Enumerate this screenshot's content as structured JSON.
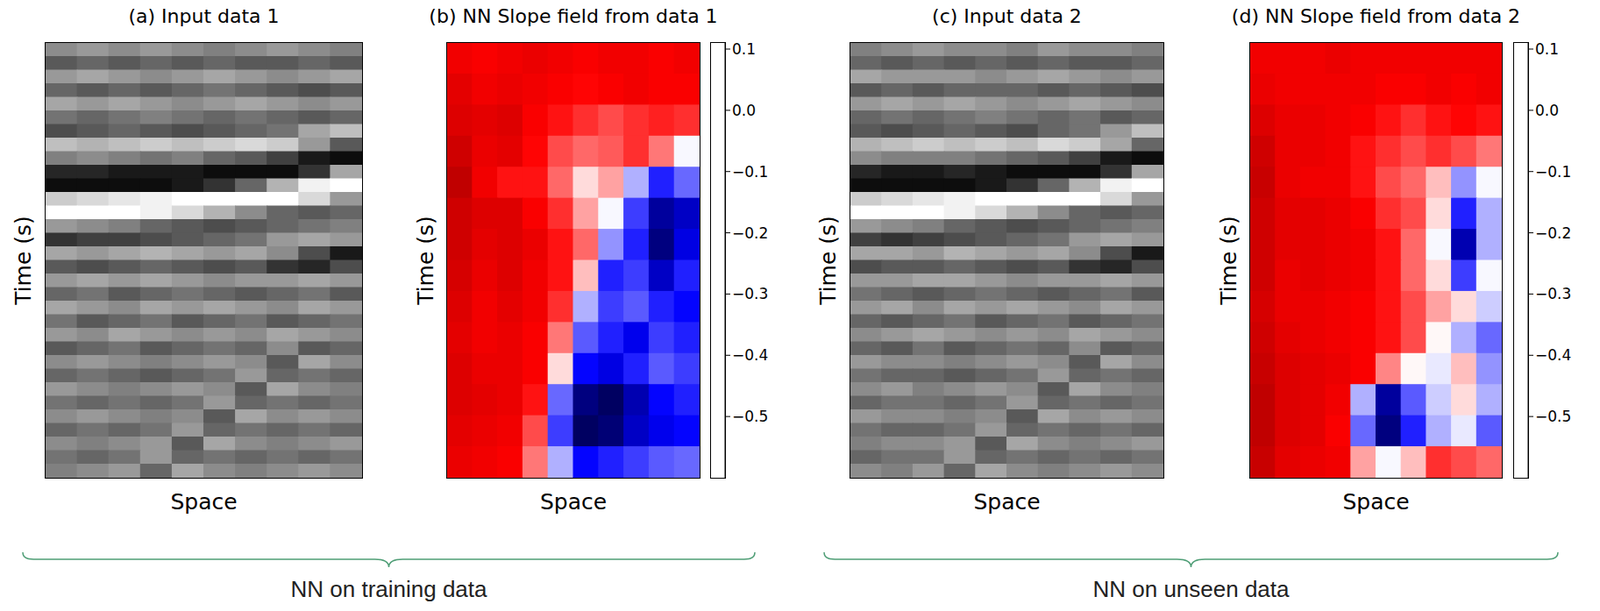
{
  "chart_data": [
    {
      "type": "image",
      "title": "(a) Input data 1",
      "x_label": "Space",
      "y_label": "Time (s)",
      "tick_labels": false,
      "value_range": [
        -1,
        1
      ],
      "cells": [
        [
          0.1,
          0.2,
          0.1,
          0.2,
          0.1,
          0.0,
          0.1,
          0.2,
          0.1,
          0.0
        ],
        [
          -0.3,
          -0.2,
          -0.3,
          -0.2,
          -0.3,
          -0.2,
          -0.3,
          -0.3,
          -0.2,
          -0.3
        ],
        [
          0.2,
          0.3,
          0.2,
          0.1,
          0.2,
          0.3,
          0.2,
          0.1,
          0.2,
          0.3
        ],
        [
          -0.2,
          -0.3,
          -0.2,
          -0.3,
          -0.2,
          -0.1,
          -0.2,
          -0.3,
          -0.4,
          -0.3
        ],
        [
          0.3,
          0.2,
          0.3,
          0.2,
          0.1,
          0.2,
          0.3,
          0.2,
          0.1,
          0.2
        ],
        [
          -0.1,
          -0.2,
          -0.1,
          0.0,
          -0.1,
          -0.2,
          -0.1,
          -0.2,
          -0.3,
          -0.2
        ],
        [
          -0.4,
          -0.3,
          -0.2,
          -0.3,
          -0.4,
          -0.3,
          -0.2,
          -0.1,
          0.3,
          0.5
        ],
        [
          0.5,
          0.4,
          0.5,
          0.6,
          0.5,
          0.6,
          0.7,
          0.6,
          0.2,
          -0.3
        ],
        [
          0.0,
          0.1,
          0.0,
          -0.1,
          0.0,
          -0.2,
          -0.3,
          -0.5,
          -0.8,
          -0.9
        ],
        [
          -0.7,
          -0.7,
          -0.8,
          -0.8,
          -0.8,
          -0.9,
          -0.9,
          -0.9,
          -0.6,
          0.3
        ],
        [
          -0.9,
          -0.9,
          -0.9,
          -0.9,
          -0.8,
          -0.6,
          -0.2,
          0.4,
          0.9,
          1.0
        ],
        [
          0.6,
          0.7,
          0.8,
          0.9,
          1.0,
          1.0,
          1.0,
          1.0,
          0.7,
          0.2
        ],
        [
          1.0,
          1.0,
          1.0,
          0.9,
          0.7,
          0.4,
          0.1,
          -0.2,
          -0.3,
          -0.2
        ],
        [
          0.2,
          0.1,
          0.0,
          -0.2,
          -0.3,
          -0.4,
          -0.3,
          -0.2,
          -0.1,
          0.0
        ],
        [
          -0.6,
          -0.5,
          -0.5,
          -0.4,
          -0.3,
          -0.2,
          -0.1,
          0.2,
          0.3,
          0.2
        ],
        [
          0.3,
          0.2,
          0.3,
          0.4,
          0.3,
          0.2,
          0.3,
          0.1,
          -0.4,
          -0.8
        ],
        [
          -0.3,
          -0.4,
          -0.3,
          -0.2,
          -0.3,
          -0.4,
          -0.3,
          -0.6,
          -0.7,
          -0.4
        ],
        [
          0.2,
          0.3,
          0.2,
          0.3,
          0.2,
          0.1,
          0.2,
          0.2,
          0.3,
          0.2
        ],
        [
          -0.2,
          -0.1,
          -0.3,
          -0.2,
          -0.1,
          -0.2,
          -0.3,
          -0.2,
          -0.1,
          -0.3
        ],
        [
          0.3,
          0.2,
          0.1,
          0.3,
          0.2,
          0.3,
          0.2,
          0.1,
          0.3,
          0.2
        ],
        [
          -0.1,
          -0.3,
          -0.2,
          -0.1,
          -0.3,
          -0.2,
          -0.1,
          -0.3,
          -0.2,
          -0.1
        ],
        [
          0.2,
          0.1,
          0.3,
          0.2,
          0.1,
          0.2,
          0.1,
          0.3,
          0.2,
          0.1
        ],
        [
          -0.3,
          -0.2,
          -0.1,
          -0.3,
          -0.2,
          -0.1,
          -0.2,
          0.1,
          -0.3,
          -0.2
        ],
        [
          0.1,
          0.2,
          0.1,
          0.0,
          0.1,
          0.2,
          0.1,
          -0.3,
          0.3,
          0.1
        ],
        [
          -0.2,
          -0.1,
          -0.2,
          -0.3,
          -0.2,
          -0.1,
          0.2,
          -0.2,
          -0.1,
          -0.2
        ],
        [
          0.2,
          0.1,
          0.0,
          0.1,
          0.2,
          0.1,
          -0.3,
          0.3,
          0.1,
          0.0
        ],
        [
          -0.1,
          -0.2,
          -0.1,
          -0.2,
          -0.1,
          0.2,
          -0.2,
          -0.1,
          -0.2,
          -0.1
        ],
        [
          0.1,
          0.2,
          0.1,
          0.0,
          0.1,
          -0.3,
          0.3,
          0.1,
          0.2,
          0.1
        ],
        [
          -0.2,
          -0.1,
          -0.2,
          -0.1,
          0.2,
          -0.2,
          -0.1,
          -0.2,
          -0.1,
          -0.2
        ],
        [
          0.1,
          0.0,
          0.1,
          0.2,
          -0.3,
          0.3,
          0.1,
          0.0,
          0.1,
          0.2
        ],
        [
          -0.1,
          -0.2,
          -0.1,
          0.2,
          -0.2,
          -0.1,
          -0.2,
          -0.1,
          -0.2,
          -0.1
        ],
        [
          0.0,
          0.1,
          0.2,
          -0.2,
          0.3,
          0.1,
          0.0,
          0.1,
          0.2,
          0.1
        ]
      ]
    },
    {
      "type": "heatmap",
      "title": "(b) NN Slope field from data 1",
      "x_label": "Space",
      "y_label": "Time (s)",
      "tick_labels": false,
      "colorbar": {
        "lim": [
          -0.6,
          0.11
        ],
        "ticks": [
          0.1,
          {
            "value": 0,
            "label": "0.0"
          },
          {
            "value": -0.1,
            "label": "−0.1"
          },
          {
            "value": -0.2,
            "label": "−0.2"
          },
          {
            "value": -0.3,
            "label": "−0.3"
          },
          {
            "value": -0.4,
            "label": "−0.4"
          },
          {
            "value": -0.5,
            "label": "−0.5"
          }
        ]
      },
      "cells": [
        [
          -0.05,
          -0.06,
          -0.05,
          -0.04,
          -0.05,
          -0.06,
          -0.05,
          -0.05,
          -0.06,
          -0.05
        ],
        [
          -0.03,
          -0.05,
          -0.04,
          -0.05,
          -0.06,
          -0.07,
          -0.06,
          -0.05,
          -0.06,
          -0.06
        ],
        [
          -0.02,
          -0.03,
          -0.02,
          -0.06,
          -0.08,
          -0.1,
          -0.12,
          -0.1,
          -0.09,
          -0.1
        ],
        [
          0.0,
          -0.04,
          -0.03,
          -0.07,
          -0.12,
          -0.14,
          -0.13,
          -0.1,
          -0.15,
          -0.25
        ],
        [
          0.02,
          -0.05,
          -0.08,
          -0.08,
          -0.14,
          -0.22,
          -0.18,
          -0.3,
          -0.4,
          -0.35
        ],
        [
          0.0,
          -0.02,
          -0.02,
          -0.06,
          -0.1,
          -0.18,
          -0.25,
          -0.38,
          -0.52,
          -0.48
        ],
        [
          0.0,
          -0.03,
          -0.02,
          -0.04,
          -0.08,
          -0.14,
          -0.32,
          -0.4,
          -0.55,
          -0.45
        ],
        [
          -0.01,
          -0.04,
          -0.02,
          -0.05,
          -0.08,
          -0.2,
          -0.4,
          -0.38,
          -0.48,
          -0.4
        ],
        [
          -0.02,
          -0.05,
          -0.03,
          -0.05,
          -0.1,
          -0.3,
          -0.38,
          -0.36,
          -0.4,
          -0.42
        ],
        [
          -0.03,
          -0.05,
          -0.04,
          -0.06,
          -0.15,
          -0.36,
          -0.4,
          -0.44,
          -0.38,
          -0.4
        ],
        [
          -0.02,
          -0.04,
          -0.04,
          -0.06,
          -0.22,
          -0.42,
          -0.45,
          -0.4,
          -0.36,
          -0.38
        ],
        [
          -0.02,
          -0.03,
          -0.04,
          -0.08,
          -0.35,
          -0.55,
          -0.58,
          -0.5,
          -0.42,
          -0.4
        ],
        [
          -0.03,
          -0.04,
          -0.05,
          -0.12,
          -0.38,
          -0.58,
          -0.56,
          -0.48,
          -0.44,
          -0.42
        ],
        [
          -0.04,
          -0.05,
          -0.06,
          -0.15,
          -0.3,
          -0.42,
          -0.4,
          -0.38,
          -0.36,
          -0.35
        ]
      ]
    },
    {
      "type": "image",
      "title": "(c) Input data 2",
      "x_label": "Space",
      "y_label": "Time (s)",
      "tick_labels": false,
      "value_range": [
        -1,
        1
      ],
      "cells": [
        [
          0.0,
          0.1,
          0.2,
          0.1,
          0.1,
          0.0,
          0.2,
          0.1,
          0.1,
          0.0
        ],
        [
          -0.2,
          -0.3,
          -0.2,
          -0.3,
          -0.2,
          -0.3,
          -0.2,
          -0.3,
          -0.3,
          -0.2
        ],
        [
          0.3,
          0.2,
          0.2,
          0.2,
          0.1,
          0.2,
          0.3,
          0.2,
          0.1,
          0.2
        ],
        [
          -0.3,
          -0.2,
          -0.3,
          -0.2,
          -0.2,
          -0.2,
          -0.3,
          -0.2,
          -0.3,
          -0.4
        ],
        [
          0.2,
          0.3,
          0.2,
          0.3,
          0.2,
          0.1,
          0.2,
          0.3,
          0.2,
          0.1
        ],
        [
          -0.2,
          -0.1,
          -0.2,
          -0.1,
          0.0,
          -0.1,
          -0.2,
          -0.1,
          -0.3,
          -0.2
        ],
        [
          -0.3,
          -0.4,
          -0.3,
          -0.2,
          -0.3,
          -0.4,
          -0.2,
          -0.1,
          0.2,
          0.5
        ],
        [
          0.4,
          0.5,
          0.6,
          0.5,
          0.6,
          0.5,
          0.7,
          0.6,
          0.3,
          -0.2
        ],
        [
          0.1,
          0.0,
          0.0,
          0.0,
          -0.1,
          -0.2,
          -0.3,
          -0.5,
          -0.8,
          -0.9
        ],
        [
          -0.7,
          -0.8,
          -0.8,
          -0.7,
          -0.8,
          -0.9,
          -0.9,
          -0.9,
          -0.6,
          0.3
        ],
        [
          -0.9,
          -0.9,
          -0.9,
          -0.9,
          -0.8,
          -0.6,
          -0.2,
          0.4,
          0.9,
          1.0
        ],
        [
          0.6,
          0.7,
          0.8,
          0.9,
          1.0,
          1.0,
          1.0,
          1.0,
          0.7,
          0.2
        ],
        [
          1.0,
          1.0,
          1.0,
          0.9,
          0.7,
          0.4,
          0.1,
          -0.2,
          -0.3,
          -0.2
        ],
        [
          0.2,
          0.1,
          0.0,
          -0.2,
          -0.3,
          -0.4,
          -0.3,
          -0.2,
          -0.1,
          0.0
        ],
        [
          -0.5,
          -0.6,
          -0.5,
          -0.4,
          -0.3,
          -0.2,
          -0.1,
          0.2,
          0.3,
          0.2
        ],
        [
          0.3,
          0.3,
          0.2,
          0.4,
          0.3,
          0.2,
          0.3,
          0.1,
          -0.4,
          -0.8
        ],
        [
          -0.4,
          -0.3,
          -0.3,
          -0.2,
          -0.3,
          -0.4,
          -0.3,
          -0.6,
          -0.7,
          -0.4
        ],
        [
          0.2,
          0.2,
          0.3,
          0.3,
          0.2,
          0.1,
          0.2,
          0.2,
          0.3,
          0.2
        ],
        [
          -0.1,
          -0.2,
          -0.3,
          -0.2,
          -0.1,
          -0.2,
          -0.3,
          -0.2,
          -0.1,
          -0.3
        ],
        [
          0.2,
          0.3,
          0.1,
          0.3,
          0.2,
          0.3,
          0.2,
          0.1,
          0.3,
          0.2
        ],
        [
          -0.2,
          -0.3,
          -0.2,
          -0.1,
          -0.3,
          -0.2,
          -0.1,
          -0.3,
          -0.2,
          -0.1
        ],
        [
          0.1,
          0.2,
          0.3,
          0.2,
          0.1,
          0.2,
          0.1,
          0.3,
          0.2,
          0.1
        ],
        [
          -0.2,
          -0.3,
          -0.1,
          -0.3,
          -0.2,
          -0.1,
          -0.2,
          0.1,
          -0.3,
          -0.2
        ],
        [
          0.2,
          0.1,
          0.1,
          0.0,
          0.1,
          0.2,
          0.1,
          -0.3,
          0.3,
          0.1
        ],
        [
          -0.1,
          -0.2,
          -0.2,
          -0.3,
          -0.2,
          -0.1,
          0.2,
          -0.2,
          -0.1,
          -0.2
        ],
        [
          0.1,
          0.2,
          0.0,
          0.1,
          0.2,
          0.1,
          -0.3,
          0.3,
          0.1,
          0.0
        ],
        [
          -0.2,
          -0.1,
          -0.1,
          -0.2,
          -0.1,
          0.2,
          -0.2,
          -0.1,
          -0.2,
          -0.1
        ],
        [
          0.2,
          0.1,
          0.1,
          0.0,
          0.1,
          -0.3,
          0.3,
          0.1,
          0.2,
          0.1
        ],
        [
          -0.1,
          -0.2,
          -0.2,
          -0.1,
          0.2,
          -0.2,
          -0.1,
          -0.2,
          -0.1,
          -0.2
        ],
        [
          0.0,
          0.1,
          0.1,
          0.2,
          -0.3,
          0.3,
          0.1,
          0.0,
          0.1,
          0.2
        ],
        [
          -0.2,
          -0.1,
          -0.1,
          0.2,
          -0.2,
          -0.1,
          -0.2,
          -0.1,
          -0.2,
          -0.1
        ],
        [
          0.1,
          0.0,
          0.2,
          -0.2,
          0.3,
          0.1,
          0.0,
          0.1,
          0.2,
          0.1
        ]
      ]
    },
    {
      "type": "heatmap",
      "title": "(d) NN Slope field from data 2",
      "x_label": "Space",
      "y_label": "Time (s)",
      "tick_labels": false,
      "colorbar": {
        "lim": [
          -0.6,
          0.11
        ],
        "ticks": [
          0.1,
          {
            "value": 0,
            "label": "0.0"
          },
          {
            "value": -0.1,
            "label": "−0.1"
          },
          {
            "value": -0.2,
            "label": "−0.2"
          },
          {
            "value": -0.3,
            "label": "−0.3"
          },
          {
            "value": -0.4,
            "label": "−0.4"
          },
          {
            "value": -0.5,
            "label": "−0.5"
          }
        ]
      },
      "cells": [
        [
          -0.05,
          -0.05,
          -0.05,
          -0.04,
          -0.05,
          -0.05,
          -0.05,
          -0.05,
          -0.05,
          -0.05
        ],
        [
          -0.04,
          -0.05,
          -0.05,
          -0.05,
          -0.05,
          -0.06,
          -0.06,
          -0.05,
          -0.06,
          -0.05
        ],
        [
          -0.02,
          -0.04,
          -0.04,
          -0.05,
          -0.06,
          -0.08,
          -0.1,
          -0.08,
          -0.07,
          -0.08
        ],
        [
          0.0,
          -0.04,
          -0.04,
          -0.05,
          -0.08,
          -0.1,
          -0.12,
          -0.1,
          -0.12,
          -0.15
        ],
        [
          0.01,
          -0.04,
          -0.05,
          -0.05,
          -0.08,
          -0.12,
          -0.14,
          -0.2,
          -0.32,
          -0.25
        ],
        [
          0.0,
          -0.03,
          -0.03,
          -0.04,
          -0.06,
          -0.1,
          -0.12,
          -0.22,
          -0.4,
          -0.3
        ],
        [
          0.0,
          -0.03,
          -0.03,
          -0.04,
          -0.05,
          -0.08,
          -0.14,
          -0.25,
          -0.5,
          -0.3
        ],
        [
          0.0,
          -0.04,
          -0.03,
          -0.04,
          -0.05,
          -0.08,
          -0.14,
          -0.22,
          -0.38,
          -0.25
        ],
        [
          -0.01,
          -0.04,
          -0.04,
          -0.05,
          -0.06,
          -0.08,
          -0.12,
          -0.18,
          -0.22,
          -0.28
        ],
        [
          0.0,
          -0.03,
          -0.04,
          -0.05,
          -0.06,
          -0.08,
          -0.12,
          -0.24,
          -0.3,
          -0.35
        ],
        [
          0.01,
          -0.02,
          -0.03,
          -0.04,
          -0.06,
          -0.16,
          -0.24,
          -0.26,
          -0.2,
          -0.32
        ],
        [
          0.02,
          -0.02,
          -0.03,
          -0.05,
          -0.3,
          -0.52,
          -0.36,
          -0.28,
          -0.22,
          -0.3
        ],
        [
          0.02,
          -0.02,
          -0.03,
          -0.06,
          -0.35,
          -0.55,
          -0.4,
          -0.3,
          -0.26,
          -0.36
        ],
        [
          0.01,
          -0.03,
          -0.04,
          -0.05,
          -0.18,
          -0.25,
          -0.2,
          -0.1,
          -0.12,
          -0.14
        ]
      ]
    }
  ],
  "groups": [
    "NN on training data",
    "NN on unseen data"
  ]
}
